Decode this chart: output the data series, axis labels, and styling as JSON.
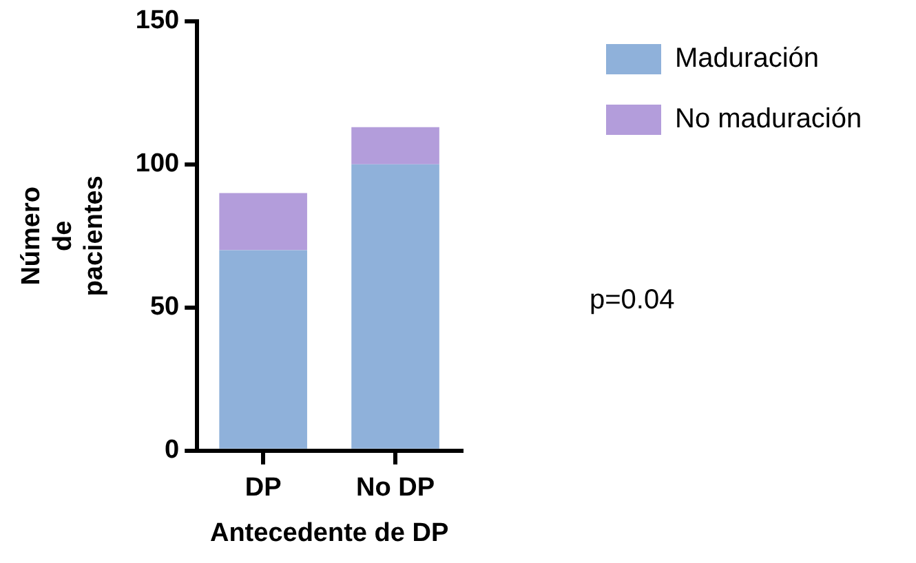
{
  "chart_data": {
    "type": "bar",
    "stacked": true,
    "xlabel": "Antecedente de DP",
    "ylabel": "Número de pacientes",
    "categories": [
      "DP",
      "No DP"
    ],
    "series": [
      {
        "name": "Maduración",
        "color": "#8fb1da",
        "values": [
          70,
          100
        ]
      },
      {
        "name": "No maduración",
        "color": "#b39ddb",
        "values": [
          20,
          13
        ]
      }
    ],
    "ylim": [
      0,
      150
    ],
    "yticks": [
      0,
      50,
      100,
      150
    ],
    "grid": false,
    "legend": "top right",
    "annotations": [
      "p=0.04"
    ]
  }
}
